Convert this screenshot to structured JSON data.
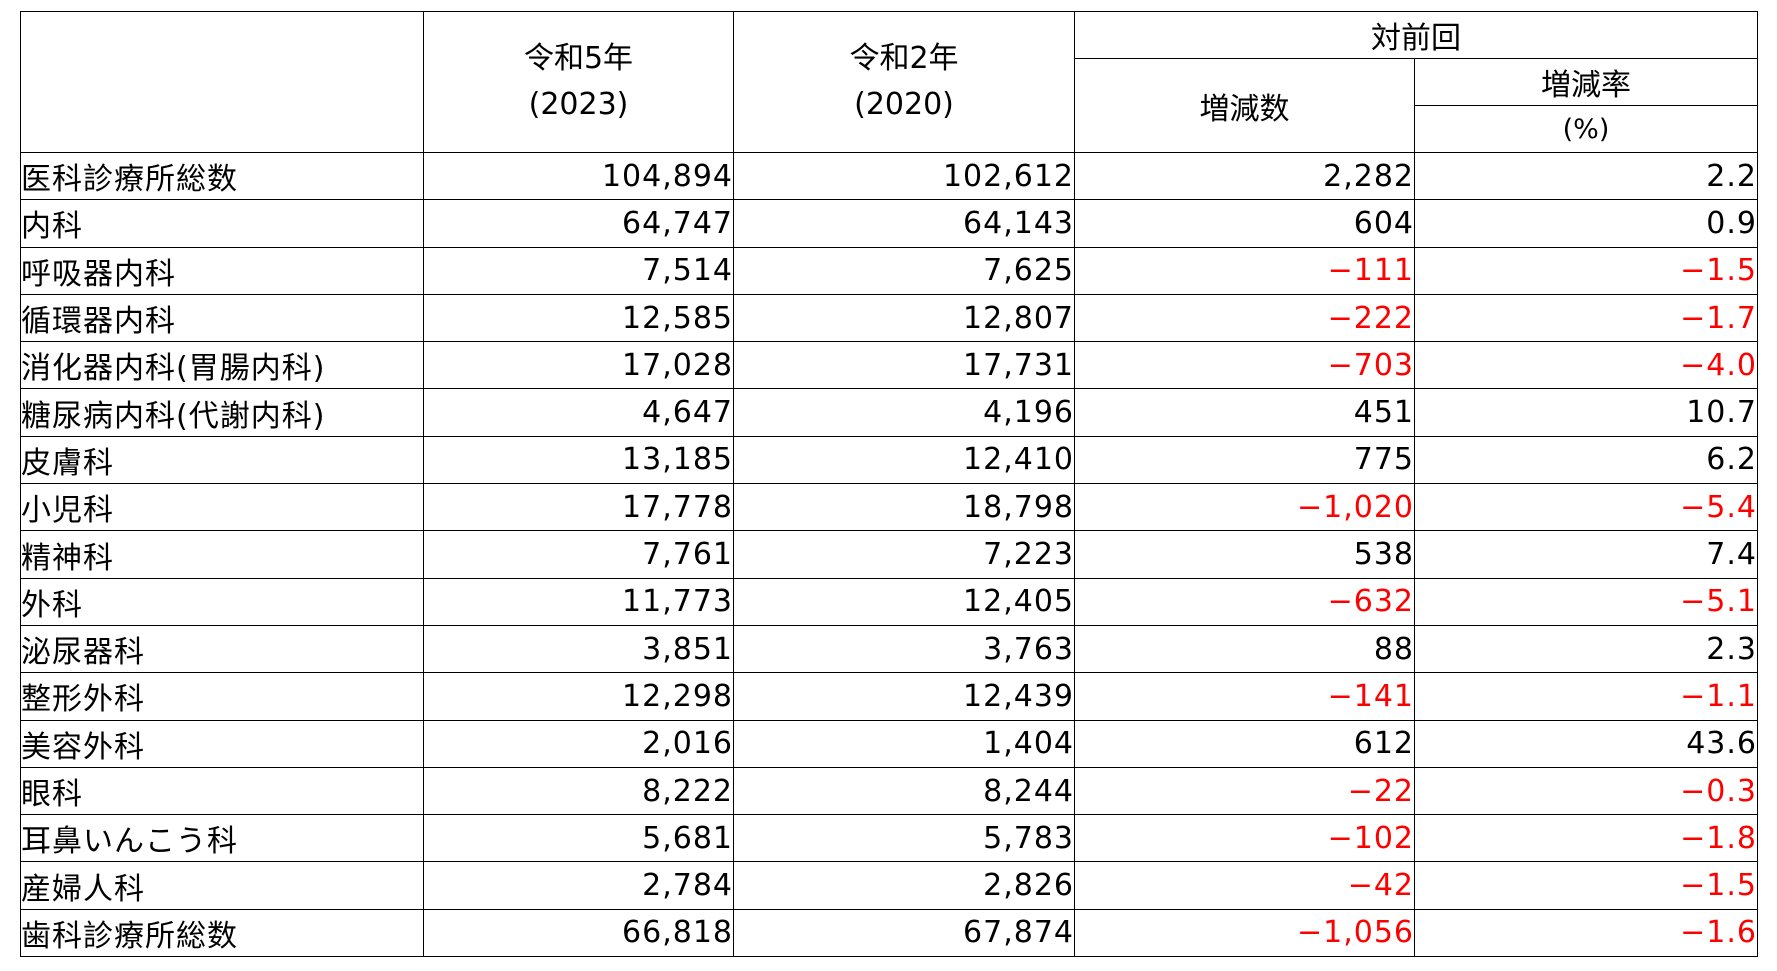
{
  "table": {
    "header": {
      "corner": "",
      "col_r5_line1": "令和5年",
      "col_r5_line2": "(2023)",
      "col_r2_line1": "令和2年",
      "col_r2_line2": "(2020)",
      "group": "対前回",
      "diff": "増減数",
      "rate": "増減率",
      "rate_unit": "(%)"
    },
    "rows": [
      {
        "name": "医科診療所総数",
        "r5": "104,894",
        "r2": "102,612",
        "diff": "2,282",
        "rate": "2.2",
        "negative": false
      },
      {
        "name": "内科",
        "r5": "64,747",
        "r2": "64,143",
        "diff": "604",
        "rate": "0.9",
        "negative": false
      },
      {
        "name": "呼吸器内科",
        "r5": "7,514",
        "r2": "7,625",
        "diff": "−111",
        "rate": "−1.5",
        "negative": true
      },
      {
        "name": "循環器内科",
        "r5": "12,585",
        "r2": "12,807",
        "diff": "−222",
        "rate": "−1.7",
        "negative": true
      },
      {
        "name": "消化器内科(胃腸内科)",
        "r5": "17,028",
        "r2": "17,731",
        "diff": "−703",
        "rate": "−4.0",
        "negative": true
      },
      {
        "name": "糖尿病内科(代謝内科)",
        "r5": "4,647",
        "r2": "4,196",
        "diff": "451",
        "rate": "10.7",
        "negative": false
      },
      {
        "name": "皮膚科",
        "r5": "13,185",
        "r2": "12,410",
        "diff": "775",
        "rate": "6.2",
        "negative": false
      },
      {
        "name": "小児科",
        "r5": "17,778",
        "r2": "18,798",
        "diff": "−1,020",
        "rate": "−5.4",
        "negative": true
      },
      {
        "name": "精神科",
        "r5": "7,761",
        "r2": "7,223",
        "diff": "538",
        "rate": "7.4",
        "negative": false
      },
      {
        "name": "外科",
        "r5": "11,773",
        "r2": "12,405",
        "diff": "−632",
        "rate": "−5.1",
        "negative": true
      },
      {
        "name": "泌尿器科",
        "r5": "3,851",
        "r2": "3,763",
        "diff": "88",
        "rate": "2.3",
        "negative": false
      },
      {
        "name": "整形外科",
        "r5": "12,298",
        "r2": "12,439",
        "diff": "−141",
        "rate": "−1.1",
        "negative": true
      },
      {
        "name": "美容外科",
        "r5": "2,016",
        "r2": "1,404",
        "diff": "612",
        "rate": "43.6",
        "negative": false
      },
      {
        "name": "眼科",
        "r5": "8,222",
        "r2": "8,244",
        "diff": "−22",
        "rate": "−0.3",
        "negative": true
      },
      {
        "name": "耳鼻いんこう科",
        "r5": "5,681",
        "r2": "5,783",
        "diff": "−102",
        "rate": "−1.8",
        "negative": true
      },
      {
        "name": "産婦人科",
        "r5": "2,784",
        "r2": "2,826",
        "diff": "−42",
        "rate": "−1.5",
        "negative": true
      },
      {
        "name": "歯科診療所総数",
        "r5": "66,818",
        "r2": "67,874",
        "diff": "−1,056",
        "rate": "−1.6",
        "negative": true
      }
    ],
    "negative_color": "#ff0000"
  }
}
